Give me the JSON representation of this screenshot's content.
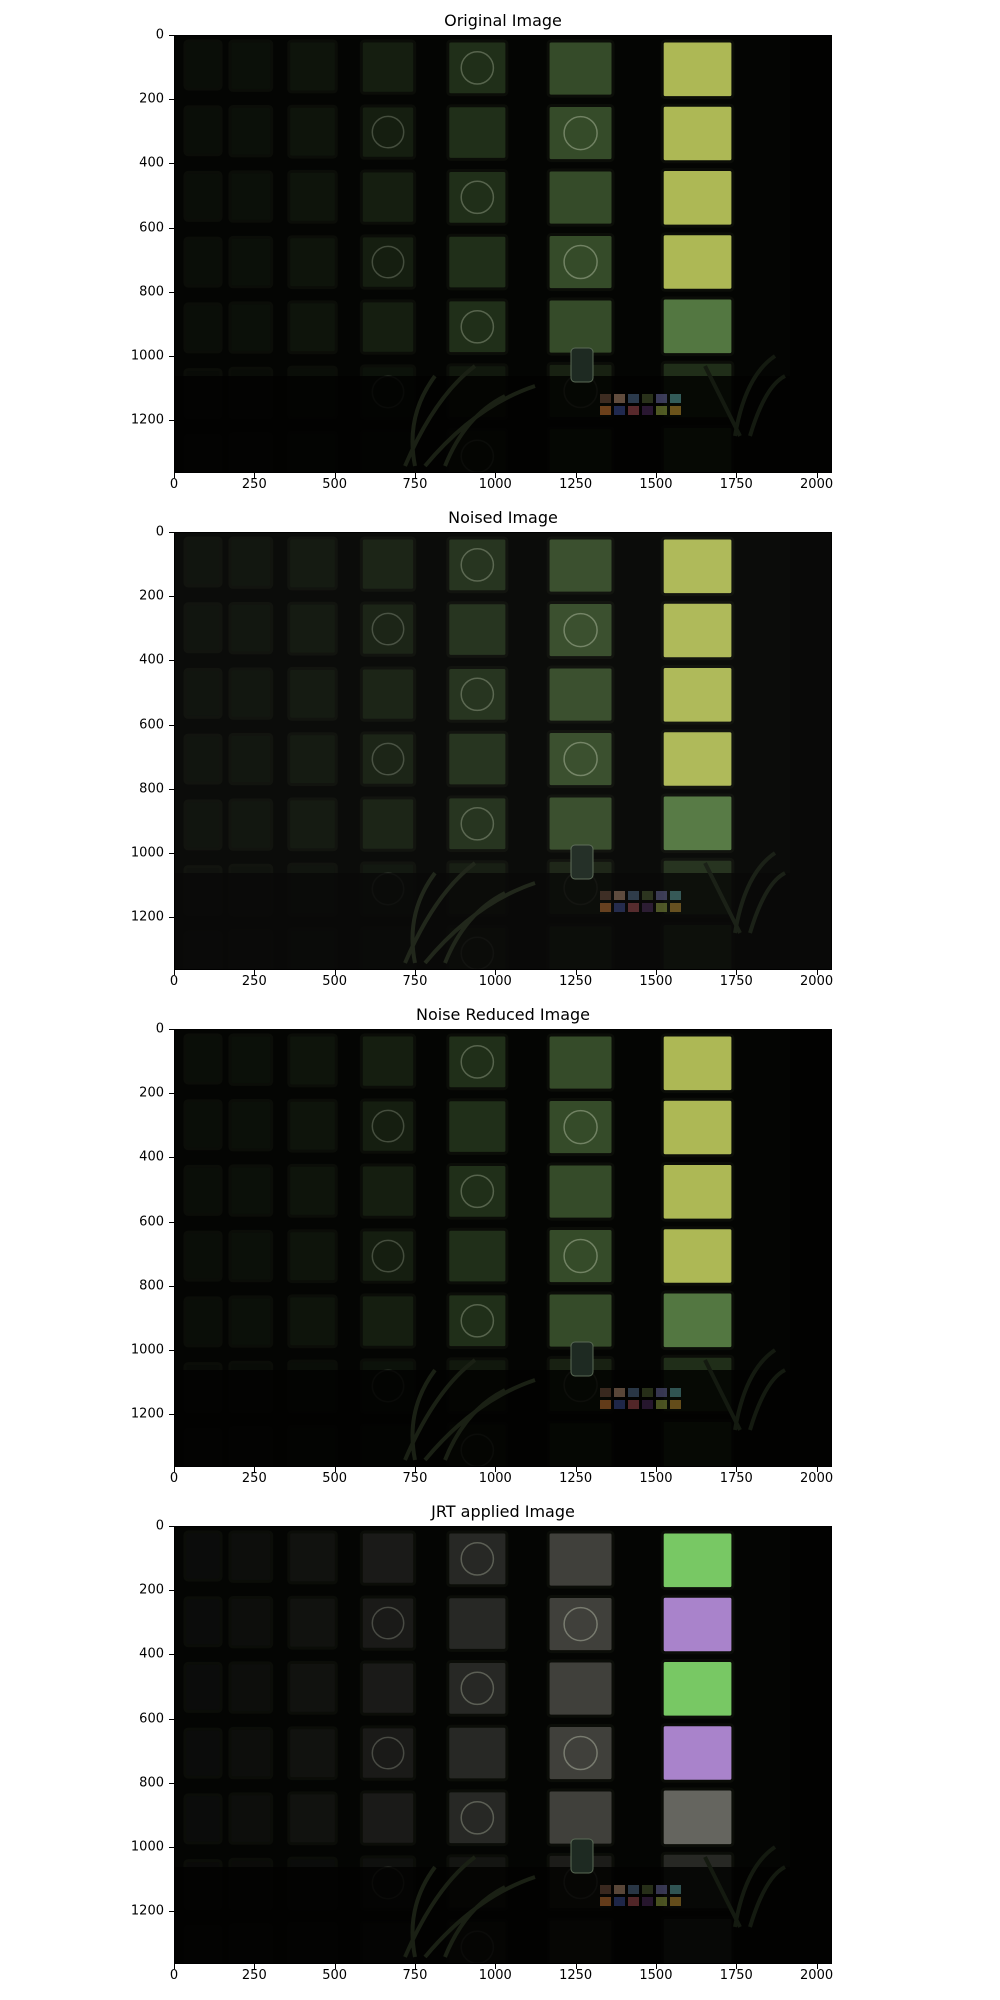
{
  "panels": [
    {
      "title": "Original Image",
      "variant": "original"
    },
    {
      "title": "Noised Image",
      "variant": "noised"
    },
    {
      "title": "Noise Reduced Image",
      "variant": "reduced"
    },
    {
      "title": "JRT applied Image",
      "variant": "jrt"
    }
  ],
  "x_ticks": [
    "0",
    "250",
    "500",
    "750",
    "1000",
    "1250",
    "1500",
    "1750",
    "2000"
  ],
  "y_ticks": [
    "0",
    "200",
    "400",
    "600",
    "800",
    "1000",
    "1200"
  ],
  "image_extent": {
    "width": 2048,
    "height": 1365
  },
  "colors": {
    "glass": "#6f8a5a",
    "bright_glass": "#c9d66a",
    "frame": "#0b0d08",
    "jrt_tint": "#a66ad6"
  }
}
